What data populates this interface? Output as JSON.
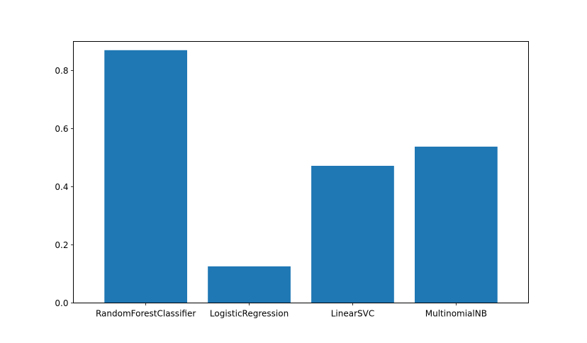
{
  "chart_data": {
    "type": "bar",
    "title": "",
    "xlabel": "",
    "ylabel": "",
    "categories": [
      "RandomForestClassifier",
      "LogisticRegression",
      "LinearSVC",
      "MultinomialNB"
    ],
    "values": [
      0.87,
      0.126,
      0.472,
      0.538
    ],
    "ylim": [
      0,
      0.9
    ],
    "yticks": [
      0.0,
      0.2,
      0.4,
      0.6,
      0.8
    ],
    "ytick_labels": [
      "0.0",
      "0.2",
      "0.4",
      "0.6",
      "0.8"
    ],
    "bar_color": "#1f77b4",
    "grid": false,
    "legend": "none"
  }
}
